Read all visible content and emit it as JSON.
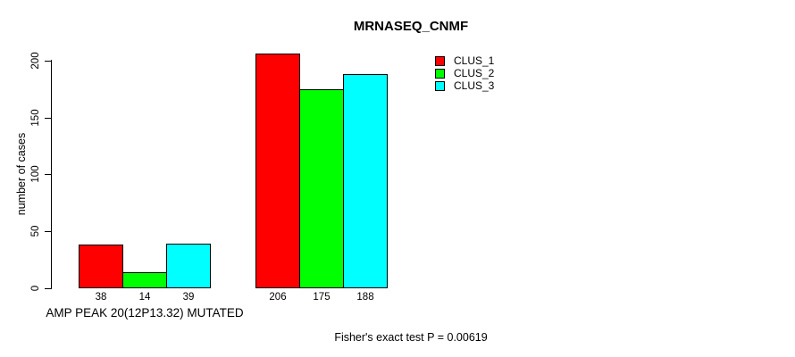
{
  "chart_data": {
    "type": "bar",
    "title": "MRNASEQ_CNMF",
    "ylabel": "number of cases",
    "footnote": "Fisher's exact test P = 0.00619",
    "ylim": [
      0,
      200
    ],
    "yticks": [
      0,
      50,
      100,
      150,
      200
    ],
    "grid": false,
    "legend_position": "top-right",
    "series": [
      {
        "name": "CLUS_1",
        "color": "#ff0000"
      },
      {
        "name": "CLUS_2",
        "color": "#00ff00"
      },
      {
        "name": "CLUS_3",
        "color": "#00ffff"
      }
    ],
    "groups": [
      {
        "label": "AMP PEAK 20(12P13.32) MUTATED",
        "values": [
          38,
          14,
          39
        ]
      },
      {
        "label": "",
        "values": [
          206,
          175,
          188
        ]
      }
    ],
    "bar_border_color": "#000000",
    "background_color": "#ffffff"
  }
}
